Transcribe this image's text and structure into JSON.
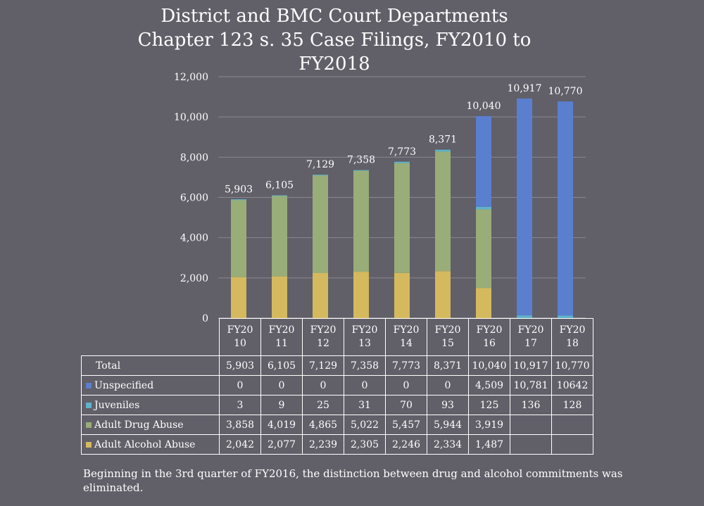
{
  "chart_data": {
    "type": "bar",
    "stacked": true,
    "title": "District and BMC Court Departments Chapter 123 s. 35 Case Filings, FY2010 to FY2018",
    "title_lines": [
      "District and BMC Court Departments",
      "Chapter 123 s. 35 Case Filings, FY2010 to",
      "FY2018"
    ],
    "categories": [
      "FY2010",
      "FY2011",
      "FY2012",
      "FY2013",
      "FY2014",
      "FY2015",
      "FY2016",
      "FY2017",
      "FY2018"
    ],
    "category_lines": [
      [
        "FY20",
        "10"
      ],
      [
        "FY20",
        "11"
      ],
      [
        "FY20",
        "12"
      ],
      [
        "FY20",
        "13"
      ],
      [
        "FY20",
        "14"
      ],
      [
        "FY20",
        "15"
      ],
      [
        "FY20",
        "16"
      ],
      [
        "FY20",
        "17"
      ],
      [
        "FY20",
        "18"
      ]
    ],
    "ylim": [
      0,
      12000
    ],
    "yticks": [
      0,
      2000,
      4000,
      6000,
      8000,
      10000,
      12000
    ],
    "ytick_labels": [
      "0",
      "2,000",
      "4,000",
      "6,000",
      "8,000",
      "10,000",
      "12,000"
    ],
    "series": [
      {
        "name": "Adult Alcohol Abuse",
        "color": "#d4b95e",
        "values": [
          2042,
          2077,
          2239,
          2305,
          2246,
          2334,
          1487,
          null,
          null
        ],
        "labels": [
          "2,042",
          "2,077",
          "2,239",
          "2,305",
          "2,246",
          "2,334",
          "1,487",
          "",
          ""
        ]
      },
      {
        "name": "Adult Drug Abuse",
        "color": "#98ad78",
        "values": [
          3858,
          4019,
          4865,
          5022,
          5457,
          5944,
          3919,
          null,
          null
        ],
        "labels": [
          "3,858",
          "4,019",
          "4,865",
          "5,022",
          "5,457",
          "5,944",
          "3,919",
          "",
          ""
        ]
      },
      {
        "name": "Juveniles",
        "color": "#5fb2c9",
        "values": [
          3,
          9,
          25,
          31,
          70,
          93,
          125,
          136,
          128
        ],
        "labels": [
          "3",
          "9",
          "25",
          "31",
          "70",
          "93",
          "125",
          "136",
          "128"
        ]
      },
      {
        "name": "Unspecified",
        "color": "#5a7fcf",
        "values": [
          0,
          0,
          0,
          0,
          0,
          0,
          4509,
          10781,
          10642
        ],
        "labels": [
          "0",
          "0",
          "0",
          "0",
          "0",
          "0",
          "4,509",
          "10,781",
          "10642"
        ]
      }
    ],
    "totals": [
      5903,
      6105,
      7129,
      7358,
      7773,
      8371,
      10040,
      10917,
      10770
    ],
    "total_labels": [
      "5,903",
      "6,105",
      "7,129",
      "7,358",
      "7,773",
      "8,371",
      "10,040",
      "10,917",
      "10,770"
    ],
    "table_row_order": [
      "Total",
      "Unspecified",
      "Juveniles",
      "Adult Drug Abuse",
      "Adult Alcohol Abuse"
    ],
    "total_row_label": "Total",
    "grid": true,
    "legend": "data table"
  },
  "footnote": "Beginning in the 3rd quarter of FY2016, the distinction between drug and alcohol commitments was eliminated.",
  "colors": {
    "background": "#615f68",
    "gridline": "#8a8890",
    "text": "#ffffff"
  }
}
